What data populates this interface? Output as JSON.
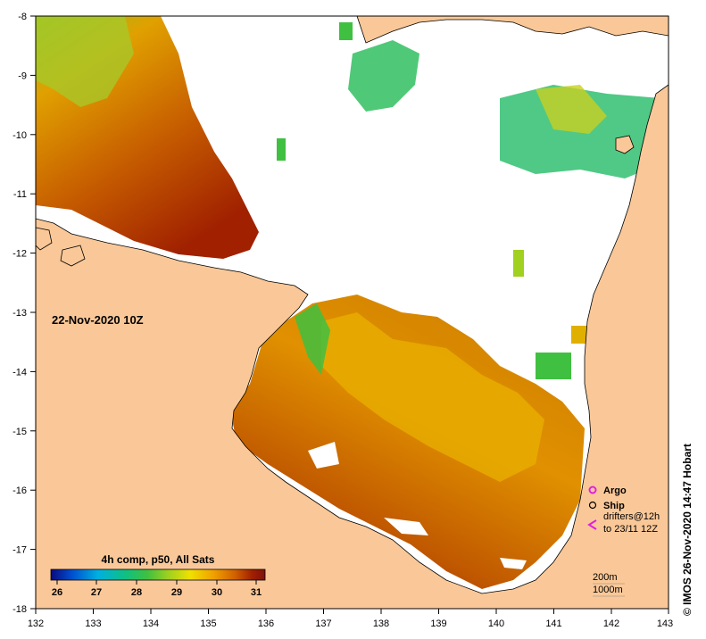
{
  "map": {
    "timestamp": "22-Nov-2020 10Z",
    "x_ticks": [
      "132",
      "133",
      "134",
      "135",
      "136",
      "137",
      "138",
      "139",
      "140",
      "141",
      "142",
      "143"
    ],
    "y_ticks": [
      "-8",
      "-9",
      "-10",
      "-11",
      "-12",
      "-13",
      "-14",
      "-15",
      "-16",
      "-17",
      "-18"
    ],
    "x_range": [
      132,
      143
    ],
    "y_range": [
      -18,
      -8
    ],
    "land_color": "#fac898",
    "cloud_color": "#ffffff"
  },
  "colorbar": {
    "title": "4h comp, p50, All Sats",
    "labels": [
      "26",
      "27",
      "28",
      "29",
      "30",
      "31"
    ],
    "range": [
      25.5,
      31.5
    ],
    "colors": [
      "#0a0a80",
      "#0050d0",
      "#00b0e0",
      "#10c080",
      "#40c040",
      "#a0d020",
      "#f0e000",
      "#f0a000",
      "#d06000",
      "#a02000",
      "#801010"
    ]
  },
  "legend": {
    "argo": "Argo",
    "ship": "Ship",
    "drifters_line1": "drifters@12h",
    "drifters_line2": "to 23/11 12Z",
    "depth_200": "200m",
    "depth_1000": "1000m",
    "argo_color": "#e020e0",
    "drifter_color": "#e020e0"
  },
  "credit": "©  IMOS 26-Nov-2020 14:47 Hobart"
}
